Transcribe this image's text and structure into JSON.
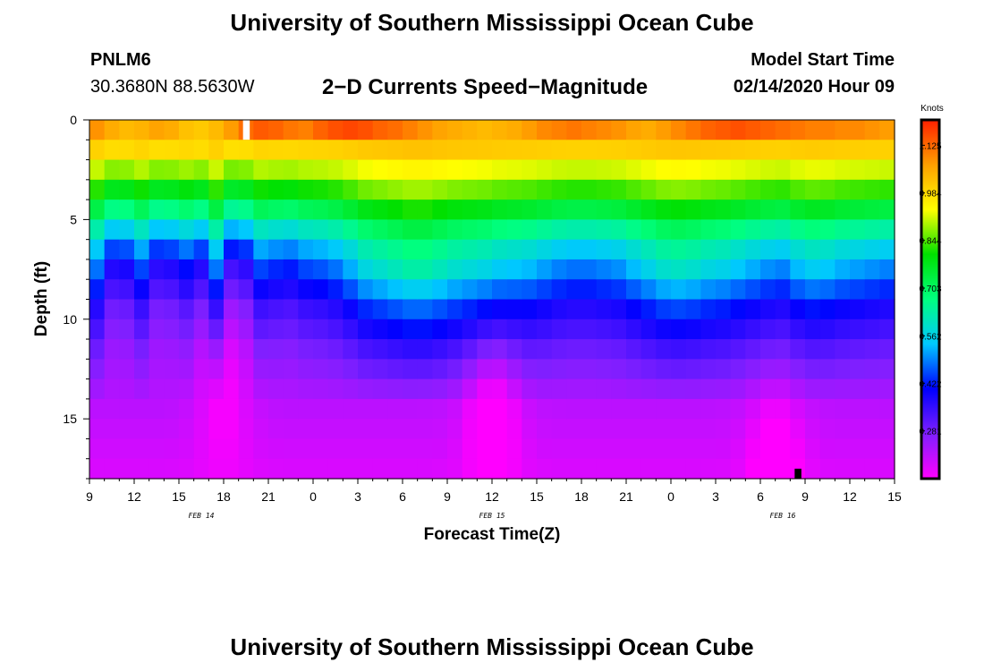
{
  "header": {
    "title": "University of Southern Mississippi Ocean Cube",
    "station_id": "PNLM6",
    "coords": "30.3680N 88.5630W",
    "plot_title": "2−D Currents Speed−Magnitude",
    "model_label": "Model Start Time",
    "model_time": "02/14/2020 Hour 09"
  },
  "footer": {
    "title": "University of Southern Mississippi Ocean Cube"
  },
  "chart_data": {
    "type": "heatmap",
    "title": "2−D Currents Speed−Magnitude",
    "xlabel": "Forecast Time(Z)",
    "ylabel": "Depth (ft)",
    "x_start_hour": 9,
    "x_hours_total": 54,
    "x_tick_labels": [
      "9",
      "12",
      "15",
      "18",
      "21",
      "0",
      "3",
      "6",
      "9",
      "12",
      "15",
      "18",
      "21",
      "0",
      "3",
      "6",
      "9",
      "12",
      "15"
    ],
    "date_labels": [
      {
        "label": "FEB 14",
        "hour": 7.5
      },
      {
        "label": "FEB 15",
        "hour": 27
      },
      {
        "label": "FEB 16",
        "hour": 46.5
      }
    ],
    "ylim": [
      0,
      18
    ],
    "y_ticks": [
      0,
      5,
      10,
      15
    ],
    "columns": 54,
    "rows": 18,
    "colorbar": {
      "unit": "Knots",
      "min": 0.14,
      "max": 1.2,
      "tick_values": [
        0.281,
        0.422,
        0.562,
        0.703,
        0.844,
        0.984,
        1.125
      ],
      "tick_labels": [
        "0.281",
        "0.422",
        "0.562",
        "0.703",
        "0.844",
        "0.984",
        "1.125"
      ],
      "colors": [
        "#ff00ff",
        "#7f1fff",
        "#0000ff",
        "#00c8ff",
        "#00ff80",
        "#00e000",
        "#ffff00",
        "#ff9f00",
        "#ff2000"
      ]
    },
    "profile_knots": [
      1.1,
      0.99,
      0.89,
      0.8,
      0.7,
      0.59,
      0.5,
      0.43,
      0.38,
      0.33,
      0.3,
      0.27,
      0.25,
      0.23,
      0.21,
      0.2,
      0.19,
      0.18
    ],
    "surface_speed_knots": [
      1.08,
      1.05,
      1.03,
      1.04,
      1.06,
      1.05,
      1.02,
      1.01,
      1.03,
      1.07,
      1.12,
      1.14,
      1.13,
      1.11,
      1.1,
      1.13,
      1.15,
      1.16,
      1.15,
      1.13,
      1.12,
      1.1,
      1.08,
      1.06,
      1.05,
      1.04,
      1.03,
      1.04,
      1.05,
      1.07,
      1.09,
      1.1,
      1.11,
      1.1,
      1.09,
      1.08,
      1.06,
      1.05,
      1.07,
      1.09,
      1.11,
      1.13,
      1.14,
      1.15,
      1.14,
      1.13,
      1.12,
      1.11,
      1.1,
      1.1,
      1.09,
      1.09,
      1.08,
      1.07
    ],
    "depth_shift_by_hour": [
      0.05,
      -0.06,
      -0.05,
      0.02,
      -0.07,
      -0.06,
      -0.02,
      -0.06,
      0.06,
      -0.09,
      -0.07,
      0.02,
      0.0,
      -0.01,
      0.02,
      0.03,
      0.05,
      0.09,
      0.14,
      0.16,
      0.18,
      0.2,
      0.2,
      0.18,
      0.16,
      0.15,
      0.14,
      0.12,
      0.11,
      0.1,
      0.08,
      0.06,
      0.05,
      0.05,
      0.06,
      0.07,
      0.1,
      0.13,
      0.16,
      0.17,
      0.16,
      0.14,
      0.13,
      0.11,
      0.09,
      0.07,
      0.06,
      0.1,
      0.12,
      0.11,
      0.09,
      0.08,
      0.07,
      0.06
    ],
    "minimum_centers": [
      {
        "hour": 8.5,
        "depth": 13,
        "strength": 0.07
      },
      {
        "hour": 26.5,
        "depth": 14,
        "strength": 0.1
      },
      {
        "hour": 45.5,
        "depth": 16.5,
        "strength": 0.08
      }
    ],
    "missing_cells": [
      {
        "hour": 10,
        "depth": 0,
        "color": "#ffffff"
      },
      {
        "hour": 47,
        "depth": 17.5,
        "color": "#000000"
      }
    ]
  }
}
